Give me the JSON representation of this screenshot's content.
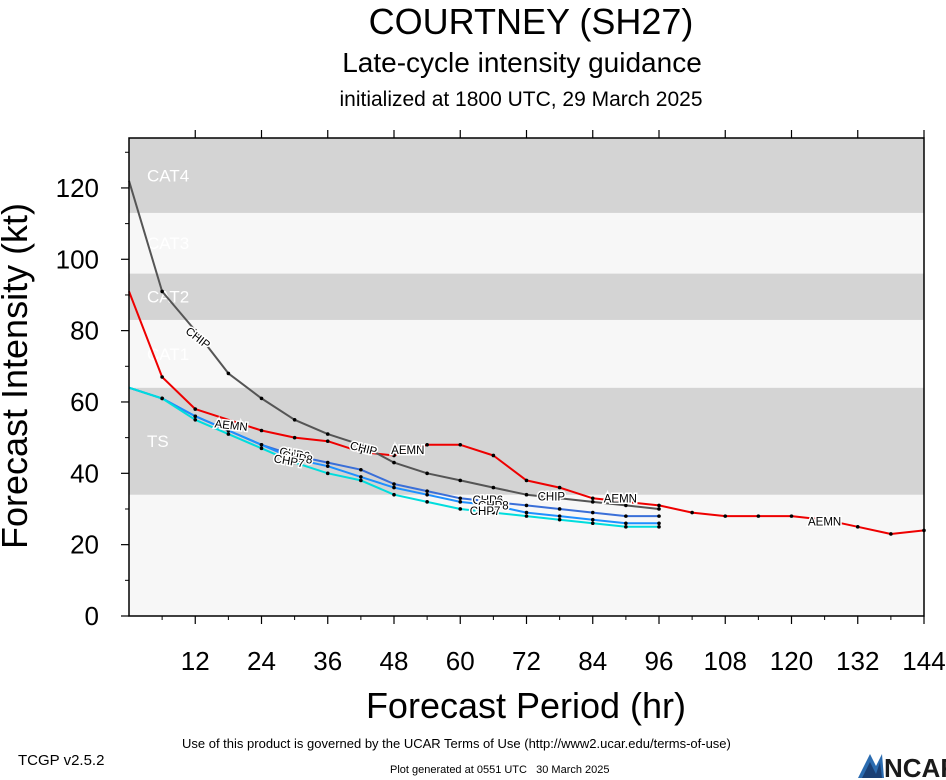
{
  "chart_data": {
    "type": "line",
    "title": "COURTNEY (SH27)",
    "subtitle": "Late-cycle intensity guidance",
    "subtitle2": "initialized at 1800 UTC, 29 March 2025",
    "xlabel": "Forecast Period (hr)",
    "ylabel": "Forecast Intensity (kt)",
    "xlim": [
      0,
      144
    ],
    "ylim": [
      0,
      134
    ],
    "xticks": [
      12,
      24,
      36,
      48,
      60,
      72,
      84,
      96,
      108,
      120,
      132,
      144
    ],
    "yticks": [
      0,
      20,
      40,
      60,
      80,
      100,
      120
    ],
    "bands": [
      {
        "label": "TS",
        "min": 34,
        "max": 64,
        "shade": "dark"
      },
      {
        "label": "CAT1",
        "min": 64,
        "max": 83,
        "shade": "light"
      },
      {
        "label": "CAT2",
        "min": 83,
        "max": 96,
        "shade": "dark"
      },
      {
        "label": "CAT3",
        "min": 96,
        "max": 113,
        "shade": "light"
      },
      {
        "label": "CAT4",
        "min": 113,
        "max": 137,
        "shade": "dark"
      }
    ],
    "series": [
      {
        "name": "AEMN",
        "color": "#ee0000",
        "label_at": [
          [
            18.5,
            53.5
          ],
          [
            50.5,
            46.5
          ],
          [
            89,
            33
          ],
          [
            126,
            26.5
          ]
        ],
        "points": [
          [
            0,
            91
          ],
          [
            6,
            67
          ],
          [
            12,
            58
          ],
          [
            24,
            52
          ],
          [
            30,
            50
          ],
          [
            36,
            49
          ],
          [
            42,
            46
          ],
          [
            48,
            45
          ],
          [
            54,
            48
          ],
          [
            60,
            48
          ],
          [
            66,
            45
          ],
          [
            72,
            38
          ],
          [
            78,
            36
          ],
          [
            84,
            33
          ],
          [
            90,
            32
          ],
          [
            96,
            31
          ],
          [
            102,
            29
          ],
          [
            108,
            28
          ],
          [
            114,
            28
          ],
          [
            120,
            28
          ],
          [
            126,
            27
          ],
          [
            132,
            25
          ],
          [
            138,
            23
          ],
          [
            144,
            24
          ]
        ]
      },
      {
        "name": "CHIP",
        "color": "#555555",
        "label_at": [
          [
            12.5,
            78
          ],
          [
            42.5,
            47
          ],
          [
            76.5,
            33.5
          ]
        ],
        "points": [
          [
            0,
            122
          ],
          [
            6,
            91
          ],
          [
            12,
            80
          ],
          [
            18,
            68
          ],
          [
            24,
            61
          ],
          [
            30,
            55
          ],
          [
            36,
            51
          ],
          [
            42,
            48
          ],
          [
            48,
            43
          ],
          [
            54,
            40
          ],
          [
            60,
            38
          ],
          [
            66,
            36
          ],
          [
            72,
            34
          ],
          [
            78,
            33
          ],
          [
            84,
            32
          ],
          [
            90,
            31
          ],
          [
            96,
            30
          ]
        ]
      },
      {
        "name": "CHP6",
        "color": "#3a6fd8",
        "label_at": [
          [
            30,
            45.5
          ],
          [
            65,
            32.5
          ]
        ],
        "points": [
          [
            0,
            64
          ],
          [
            6,
            61
          ],
          [
            12,
            56
          ],
          [
            18,
            52
          ],
          [
            24,
            48
          ],
          [
            30,
            45
          ],
          [
            36,
            43
          ],
          [
            42,
            41
          ],
          [
            48,
            37
          ],
          [
            54,
            35
          ],
          [
            60,
            33
          ],
          [
            66,
            32
          ],
          [
            72,
            31
          ],
          [
            78,
            30
          ],
          [
            84,
            29
          ],
          [
            90,
            28
          ],
          [
            96,
            28
          ]
        ]
      },
      {
        "name": "CHP8",
        "color": "#1e90ff",
        "label_at": [
          [
            30.5,
            44.5
          ],
          [
            66,
            31
          ]
        ],
        "points": [
          [
            0,
            64
          ],
          [
            6,
            61
          ],
          [
            12,
            56
          ],
          [
            18,
            52
          ],
          [
            24,
            48
          ],
          [
            30,
            44
          ],
          [
            36,
            42
          ],
          [
            42,
            39
          ],
          [
            48,
            36
          ],
          [
            54,
            34
          ],
          [
            60,
            32
          ],
          [
            66,
            31
          ],
          [
            72,
            29
          ],
          [
            78,
            28
          ],
          [
            84,
            27
          ],
          [
            90,
            26
          ],
          [
            96,
            26
          ]
        ]
      },
      {
        "name": "CHP7",
        "color": "#00dddd",
        "label_at": [
          [
            29,
            43.5
          ],
          [
            64.5,
            29.5
          ]
        ],
        "points": [
          [
            0,
            64
          ],
          [
            6,
            61
          ],
          [
            12,
            55
          ],
          [
            18,
            51
          ],
          [
            24,
            47
          ],
          [
            30,
            43
          ],
          [
            36,
            40
          ],
          [
            42,
            38
          ],
          [
            48,
            34
          ],
          [
            54,
            32
          ],
          [
            60,
            30
          ],
          [
            66,
            29
          ],
          [
            72,
            28
          ],
          [
            78,
            27
          ],
          [
            84,
            26
          ],
          [
            90,
            25
          ],
          [
            96,
            25
          ]
        ]
      }
    ]
  },
  "footer": {
    "version": "TCGP v2.5.2",
    "terms": "Use of this product is governed by the UCAR Terms of Use (http://www2.ucar.edu/terms-of-use)",
    "generated": "Plot generated at 0551 UTC   30 March 2025",
    "logo_text": "NCAR"
  },
  "colors": {
    "dark_band": "#d4d4d4",
    "light_band": "#f7f7f7",
    "band_label": "#ffffff"
  }
}
